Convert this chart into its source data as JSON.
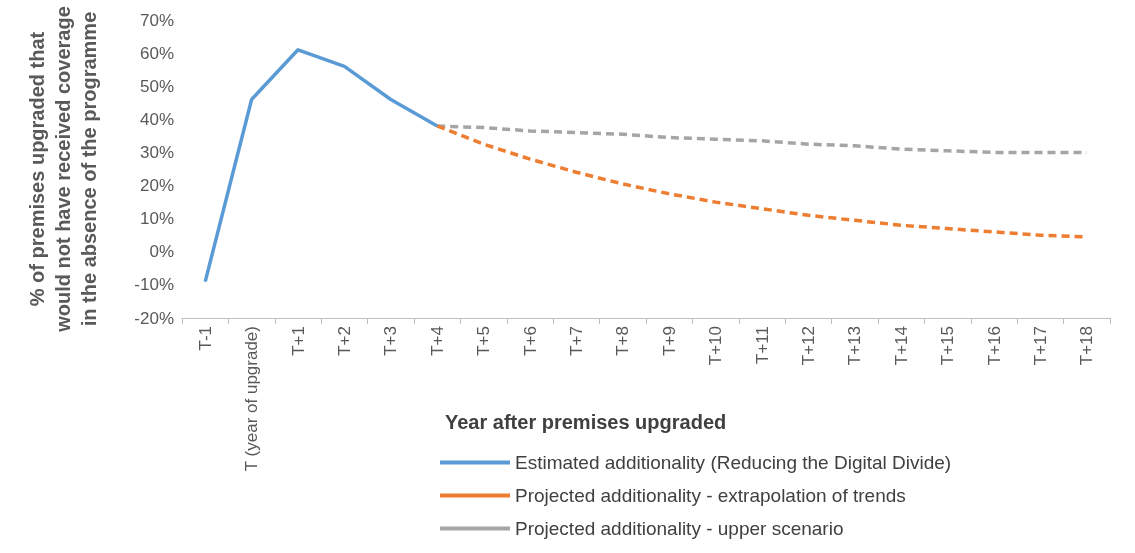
{
  "chart_data": {
    "type": "line",
    "xlabel": "Year after premises upgraded",
    "ylabel": "% of premises upgraded that would not have received coverage in the absence of the programme",
    "categories": [
      "T-1",
      "T (year of upgrade)",
      "T+1",
      "T+2",
      "T+3",
      "T+4",
      "T+5",
      "T+6",
      "T+7",
      "T+8",
      "T+9",
      "T+10",
      "T+11",
      "T+12",
      "T+13",
      "T+14",
      "T+15",
      "T+16",
      "T+17",
      "T+18"
    ],
    "series": [
      {
        "name": "Estimated additionality (Reducing the Digital Divide)",
        "color": "#5b9bd5",
        "line_style": "solid",
        "values": [
          -9,
          46,
          61,
          56,
          46,
          38,
          null,
          null,
          null,
          null,
          null,
          null,
          null,
          null,
          null,
          null,
          null,
          null,
          null,
          null
        ]
      },
      {
        "name": "Projected additionality - extrapolation of trends",
        "color": "#ed7d31",
        "line_style": "dashed",
        "values": [
          null,
          null,
          null,
          null,
          null,
          38,
          32.5,
          28,
          24,
          20.5,
          17.5,
          15,
          13,
          11,
          9.5,
          8,
          7,
          6,
          5,
          4.5
        ]
      },
      {
        "name": "Projected additionality - upper scenario",
        "color": "#a5a5a5",
        "line_style": "dashed",
        "values": [
          null,
          null,
          null,
          null,
          null,
          38,
          37.5,
          36.5,
          36,
          35.5,
          34.5,
          34,
          33.5,
          32.5,
          32,
          31,
          30.5,
          30,
          30,
          30
        ]
      }
    ],
    "ylim": [
      -20,
      70
    ],
    "yticks": [
      {
        "value": -20,
        "label": "-20%"
      },
      {
        "value": -10,
        "label": "-10%"
      },
      {
        "value": 0,
        "label": "0%"
      },
      {
        "value": 10,
        "label": "10%"
      },
      {
        "value": 20,
        "label": "20%"
      },
      {
        "value": 30,
        "label": "30%"
      },
      {
        "value": 40,
        "label": "40%"
      },
      {
        "value": 50,
        "label": "50%"
      },
      {
        "value": 60,
        "label": "60%"
      },
      {
        "value": 70,
        "label": "70%"
      }
    ],
    "grid": false,
    "legend": "bottom",
    "marker": "none"
  }
}
